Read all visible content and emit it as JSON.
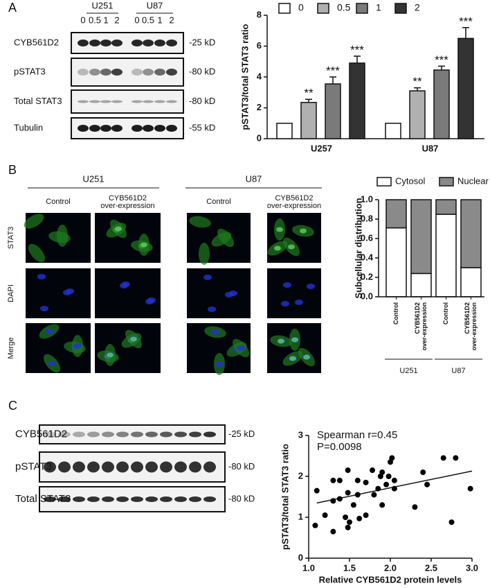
{
  "panel_labels": [
    "A",
    "B",
    "C"
  ],
  "blot_a": {
    "groups": [
      "U251",
      "U87"
    ],
    "lanes": [
      "0",
      "0.5",
      "1",
      "2",
      "0",
      "0.5",
      "1",
      "2"
    ],
    "rows": [
      "CYB561D2",
      "pSTAT3",
      "Total STAT3",
      "Tubulin"
    ],
    "sizes": [
      "-25 kD",
      "-80 kD",
      "-80 kD",
      "-55 kD"
    ]
  },
  "microscopy": {
    "groups": [
      "U251",
      "U87"
    ],
    "columns": [
      [
        "Control"
      ],
      [
        "CYB561D2",
        "over-expression"
      ],
      [
        "Control"
      ],
      [
        "CYB561D2",
        "over-expression"
      ]
    ],
    "rows": [
      "STAT3",
      "DAPI",
      "Merge"
    ]
  },
  "blot_c": {
    "rows": [
      "CYB561D2",
      "pSTAT3",
      "Total STAT3"
    ],
    "sizes": [
      "-25 kD",
      "-80 kD",
      "-80 kD"
    ]
  },
  "chart_data": [
    {
      "type": "bar",
      "ylabel": "pSTAT3/total STAT3 ratio",
      "categories": [
        "U257",
        "U87"
      ],
      "series": [
        {
          "name": "0",
          "color": "#ffffff",
          "values": [
            1,
            1
          ],
          "errors": [
            0,
            0
          ],
          "significance": [
            null,
            null
          ]
        },
        {
          "name": "0.5",
          "color": "#b0b0b0",
          "values": [
            2.35,
            3.1
          ],
          "errors": [
            0.2,
            0.2
          ],
          "significance": [
            "**",
            "**"
          ]
        },
        {
          "name": "1",
          "color": "#7a7a7a",
          "values": [
            3.55,
            4.45
          ],
          "errors": [
            0.45,
            0.25
          ],
          "significance": [
            "***",
            "***"
          ]
        },
        {
          "name": "2",
          "color": "#333333",
          "values": [
            4.9,
            6.5
          ],
          "errors": [
            0.45,
            0.7
          ],
          "significance": [
            "***",
            "***"
          ]
        }
      ],
      "ylim": [
        0,
        8
      ],
      "yticks": [
        0,
        2,
        4,
        6,
        8
      ],
      "legend": "top"
    },
    {
      "type": "stacked_bar",
      "ylabel": "Subcellular distribution",
      "categories": [
        [
          "Control"
        ],
        [
          "CYB561D2",
          "over-expression"
        ],
        [
          "Control"
        ],
        [
          "CYB561D2",
          "over-expression"
        ]
      ],
      "groups": [
        "U251",
        "U87"
      ],
      "series": [
        {
          "name": "Cytosol",
          "color": "#ffffff",
          "values": [
            0.71,
            0.24,
            0.85,
            0.3
          ]
        },
        {
          "name": "Nuclear",
          "color": "#8a8a8a",
          "values": [
            0.29,
            0.76,
            0.15,
            0.7
          ]
        }
      ],
      "ylim": [
        0,
        1
      ],
      "yticks": [
        {
          "value": 0,
          "label": "0.0"
        },
        {
          "value": 0.2,
          "label": "0.2"
        },
        {
          "value": 0.4,
          "label": "0.4"
        },
        {
          "value": 0.6,
          "label": "0.6"
        },
        {
          "value": 0.8,
          "label": "0.8"
        },
        {
          "value": 1,
          "label": "1.0"
        }
      ],
      "legend": "top"
    },
    {
      "type": "scatter",
      "xlabel": "Relative CYB561D2 protein levels",
      "ylabel": "pSTAT3/total STAT3 ratio",
      "annotations": [
        "Spearman r=0.45",
        "P=0.0098"
      ],
      "x": [
        1.08,
        1.1,
        1.2,
        1.3,
        1.3,
        1.3,
        1.38,
        1.38,
        1.45,
        1.48,
        1.48,
        1.48,
        1.5,
        1.55,
        1.6,
        1.6,
        1.62,
        1.7,
        1.7,
        1.78,
        1.8,
        1.85,
        1.88,
        1.9,
        1.9,
        1.95,
        1.98,
        2.0,
        2.02,
        2.05,
        2.05,
        2.3,
        2.4,
        2.45,
        2.65,
        2.75,
        2.8,
        2.98
      ],
      "values": [
        0.8,
        1.65,
        1.05,
        0.65,
        1.4,
        1.9,
        1.9,
        1.45,
        1.0,
        0.75,
        1.6,
        2.15,
        0.88,
        1.3,
        1.55,
        1.9,
        0.97,
        1.05,
        1.85,
        2.15,
        1.55,
        1.7,
        2.0,
        1.3,
        2.1,
        1.8,
        2.0,
        2.35,
        2.45,
        1.7,
        1.9,
        1.25,
        2.1,
        1.8,
        2.45,
        0.88,
        2.45,
        1.7
      ],
      "color": "#000000",
      "fit_line": {
        "x": [
          1.1,
          3.0
        ],
        "y": [
          1.35,
          2.13
        ]
      },
      "xlim": [
        1.0,
        3.0
      ],
      "xticks": [
        {
          "value": 1,
          "label": "1.0"
        },
        {
          "value": 1.5,
          "label": "1.5"
        },
        {
          "value": 2,
          "label": "2.0"
        },
        {
          "value": 2.5,
          "label": "2.5"
        },
        {
          "value": 3,
          "label": "3.0"
        }
      ],
      "ylim": [
        0,
        3
      ],
      "yticks": [
        0,
        1,
        2,
        3
      ]
    }
  ]
}
